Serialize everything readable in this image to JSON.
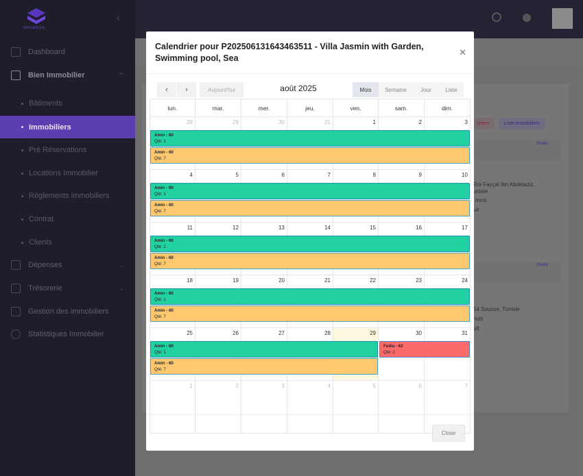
{
  "sidebar": {
    "logo_text": "SHOANDA",
    "items": [
      {
        "label": "Dashboard",
        "icon": "grid-icon"
      },
      {
        "label": "Bien Immobilier",
        "icon": "home-icon"
      },
      {
        "label": "Dépenses",
        "icon": "wallet-icon"
      },
      {
        "label": "Trésorerie",
        "icon": "bank-icon"
      },
      {
        "label": "Gestion des immobiliers",
        "icon": "building-icon"
      },
      {
        "label": "Statistiques Immobilier",
        "icon": "pie-chart-icon"
      }
    ],
    "subitems": [
      {
        "label": "Bâtiments"
      },
      {
        "label": "Immobiliers"
      },
      {
        "label": "Pré Réservations"
      },
      {
        "label": "Locations Immobilier"
      },
      {
        "label": "Règlements immobiliers"
      },
      {
        "label": "Contrat"
      },
      {
        "label": "Clients"
      }
    ]
  },
  "background": {
    "btn_partial": "biliers",
    "btn_list": "Liste immobiliers",
    "badge1": "Studio",
    "addr1a": "Roi Fayçal Ibn Abdelaziz,",
    "addr1b": "unisie",
    "duration1": "mois",
    "free1": "uit",
    "badge2": "Studio",
    "addr2": "54 Sousse, Tunisie",
    "duration2": "nois",
    "free2": "uit"
  },
  "modal": {
    "title": "Calendrier pour P202506131643463511 - Villa Jasmin with Garden, Swimming pool, Sea",
    "today_label": "Aujourd'hui",
    "month_label": "août 2025",
    "views": {
      "month": "Mois",
      "week": "Semaine",
      "day": "Jour",
      "list": "Liste"
    },
    "weekdays": [
      "lun.",
      "mar.",
      "mer.",
      "jeu.",
      "ven.",
      "sam.",
      "dim."
    ],
    "close_label": "Close"
  },
  "calendar": {
    "weeks": [
      {
        "days": [
          "28",
          "29",
          "30",
          "31",
          "1",
          "2",
          "3"
        ],
        "other": [
          true,
          true,
          true,
          true,
          false,
          false,
          false
        ]
      },
      {
        "days": [
          "4",
          "5",
          "6",
          "7",
          "8",
          "9",
          "10"
        ],
        "other": [
          false,
          false,
          false,
          false,
          false,
          false,
          false
        ]
      },
      {
        "days": [
          "11",
          "12",
          "13",
          "14",
          "15",
          "16",
          "17"
        ],
        "other": [
          false,
          false,
          false,
          false,
          false,
          false,
          false
        ]
      },
      {
        "days": [
          "18",
          "19",
          "20",
          "21",
          "22",
          "23",
          "24"
        ],
        "other": [
          false,
          false,
          false,
          false,
          false,
          false,
          false
        ]
      },
      {
        "days": [
          "25",
          "26",
          "27",
          "28",
          "29",
          "30",
          "31"
        ],
        "other": [
          false,
          false,
          false,
          false,
          false,
          false,
          false
        ]
      },
      {
        "days": [
          "1",
          "2",
          "3",
          "4",
          "5",
          "6",
          "7"
        ],
        "other": [
          true,
          true,
          true,
          true,
          true,
          true,
          true
        ]
      }
    ],
    "today_index": {
      "week": 4,
      "day": 4
    },
    "events": [
      {
        "week": 0,
        "start": 0,
        "end": 6,
        "slot": 0,
        "color": "green",
        "title": "Amin - 60",
        "qty": "Qté: 1"
      },
      {
        "week": 0,
        "start": 0,
        "end": 6,
        "slot": 1,
        "color": "orange",
        "title": "Amin - 60",
        "qty": "Qté: 7"
      },
      {
        "week": 1,
        "start": 0,
        "end": 6,
        "slot": 0,
        "color": "green",
        "title": "Amin - 60",
        "qty": "Qté: 1"
      },
      {
        "week": 1,
        "start": 0,
        "end": 6,
        "slot": 1,
        "color": "orange",
        "title": "Amin - 60",
        "qty": "Qté: 7"
      },
      {
        "week": 2,
        "start": 0,
        "end": 6,
        "slot": 0,
        "color": "green",
        "title": "Amin - 60",
        "qty": "Qté: 1"
      },
      {
        "week": 2,
        "start": 0,
        "end": 6,
        "slot": 1,
        "color": "orange",
        "title": "Amin - 60",
        "qty": "Qté: 7"
      },
      {
        "week": 3,
        "start": 0,
        "end": 6,
        "slot": 0,
        "color": "green",
        "title": "Amin - 60",
        "qty": "Qté: 1"
      },
      {
        "week": 3,
        "start": 0,
        "end": 6,
        "slot": 1,
        "color": "orange",
        "title": "Amin - 60",
        "qty": "Qté: 7"
      },
      {
        "week": 4,
        "start": 0,
        "end": 4,
        "slot": 0,
        "color": "green",
        "title": "Amin - 60",
        "qty": "Qté: 1"
      },
      {
        "week": 4,
        "start": 5,
        "end": 6,
        "slot": 0,
        "color": "red",
        "title": "Fedia - 62",
        "qty": "Qté: 2"
      },
      {
        "week": 4,
        "start": 0,
        "end": 4,
        "slot": 1,
        "color": "orange",
        "title": "Amin - 60",
        "qty": "Qté: 7"
      }
    ]
  },
  "colors": {
    "accent": "#5b3eb0",
    "event_green": "#21d19f",
    "event_orange": "#fdc86e",
    "event_red": "#fb6b6b"
  }
}
